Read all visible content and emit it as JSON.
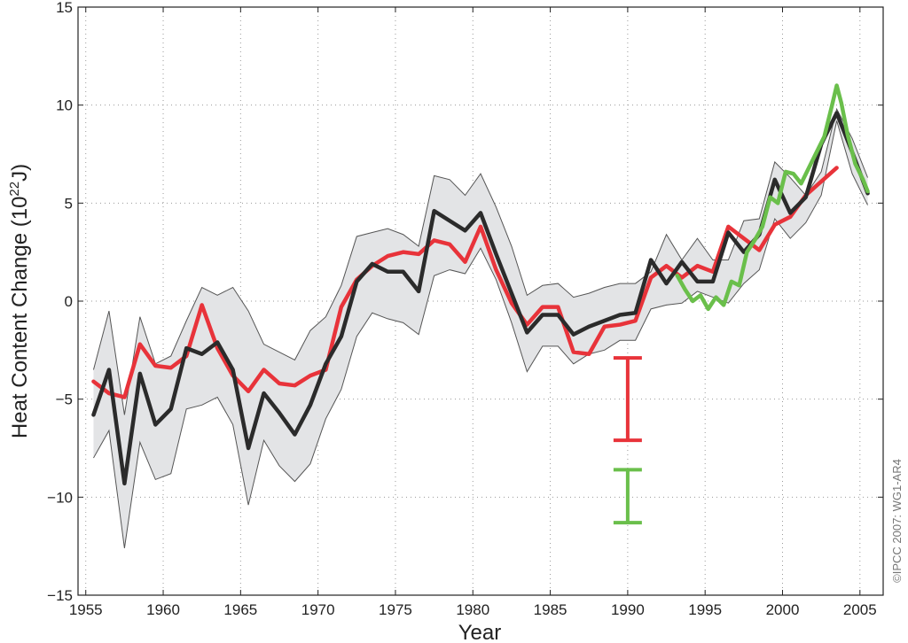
{
  "chart_data": {
    "type": "line",
    "xlabel": "Year",
    "ylabel_main": "Heat Content Change (10",
    "ylabel_exp": "22",
    "ylabel_unit": "J)",
    "credit": "©IPCC  2007: WG1-AR4",
    "xlim": [
      1954.5,
      2006.5
    ],
    "ylim": [
      -15,
      15
    ],
    "xticks": [
      1955,
      1960,
      1965,
      1970,
      1975,
      1980,
      1985,
      1990,
      1995,
      2000,
      2005
    ],
    "yticks": [
      -15,
      -10,
      -5,
      0,
      5,
      10,
      15
    ],
    "grid": true,
    "colors": {
      "black_series": "#2b2b2b",
      "red_series": "#e8333a",
      "green_series": "#6abf4b",
      "band_fill": "#e3e4e6",
      "band_edge": "#555555"
    },
    "band": {
      "x": [
        1955.5,
        1956.5,
        1957.5,
        1958.5,
        1959.5,
        1960.5,
        1961.5,
        1962.5,
        1963.5,
        1964.5,
        1965.5,
        1966.5,
        1967.5,
        1968.5,
        1969.5,
        1970.5,
        1971.5,
        1972.5,
        1973.5,
        1974.5,
        1975.5,
        1976.5,
        1977.5,
        1978.5,
        1979.5,
        1980.5,
        1981.5,
        1982.5,
        1983.5,
        1984.5,
        1985.5,
        1986.5,
        1987.5,
        1988.5,
        1989.5,
        1990.5,
        1991.5,
        1992.5,
        1993.5,
        1994.5,
        1995.5,
        1996.5,
        1997.5,
        1998.5,
        1999.5,
        2000.5,
        2001.5,
        2002.5,
        2003.5,
        2004.5,
        2005.5
      ],
      "upper": [
        -3.5,
        -0.5,
        -5.8,
        -0.8,
        -3.2,
        -2.8,
        -1.0,
        0.7,
        0.3,
        0.7,
        -0.5,
        -2.2,
        -2.6,
        -3.0,
        -1.5,
        -0.8,
        0.8,
        3.3,
        3.5,
        3.7,
        3.4,
        2.8,
        6.4,
        6.2,
        5.4,
        6.5,
        4.8,
        2.8,
        0.3,
        0.8,
        0.9,
        0.2,
        0.4,
        0.7,
        0.9,
        0.9,
        1.5,
        3.4,
        2.1,
        3.2,
        2.1,
        2.1,
        4.1,
        4.2,
        7.1,
        6.3,
        5.4,
        6.6,
        9.8,
        8.3,
        6.3
      ],
      "lower": [
        -8.0,
        -6.6,
        -12.6,
        -7.2,
        -9.1,
        -8.8,
        -5.5,
        -5.3,
        -4.9,
        -6.3,
        -10.4,
        -7.1,
        -8.4,
        -9.2,
        -8.3,
        -6.0,
        -4.5,
        -1.8,
        -0.6,
        -0.9,
        -1.1,
        -1.7,
        1.3,
        1.6,
        1.4,
        2.7,
        1.1,
        -1.1,
        -3.6,
        -2.3,
        -2.3,
        -3.2,
        -2.7,
        -2.5,
        -2.0,
        -2.0,
        -0.4,
        -0.2,
        -0.1,
        0.5,
        0.2,
        -0.1,
        0.9,
        1.6,
        4.2,
        3.2,
        4.0,
        5.4,
        9.2,
        6.5,
        4.9
      ]
    },
    "series": [
      {
        "key": "black",
        "x": [
          1955.5,
          1956.5,
          1957.5,
          1958.5,
          1959.5,
          1960.5,
          1961.5,
          1962.5,
          1963.5,
          1964.5,
          1965.5,
          1966.5,
          1967.5,
          1968.5,
          1969.5,
          1970.5,
          1971.5,
          1972.5,
          1973.5,
          1974.5,
          1975.5,
          1976.5,
          1977.5,
          1978.5,
          1979.5,
          1980.5,
          1981.5,
          1982.5,
          1983.5,
          1984.5,
          1985.5,
          1986.5,
          1987.5,
          1988.5,
          1989.5,
          1990.5,
          1991.5,
          1992.5,
          1993.5,
          1994.5,
          1995.5,
          1996.5,
          1997.5,
          1998.5,
          1999.5,
          2000.5,
          2001.5,
          2002.5,
          2003.5,
          2004.5,
          2005.5
        ],
        "y": [
          -5.8,
          -3.5,
          -9.3,
          -3.7,
          -6.3,
          -5.5,
          -2.4,
          -2.7,
          -2.1,
          -3.5,
          -7.5,
          -4.7,
          -5.7,
          -6.8,
          -5.3,
          -3.2,
          -1.8,
          1.0,
          1.9,
          1.5,
          1.5,
          0.5,
          4.6,
          4.1,
          3.6,
          4.5,
          2.4,
          0.4,
          -1.6,
          -0.7,
          -0.7,
          -1.7,
          -1.3,
          -1.0,
          -0.7,
          -0.6,
          2.1,
          0.9,
          2.0,
          1.0,
          1.0,
          3.5,
          2.5,
          3.4,
          6.2,
          4.5,
          5.3,
          8.0,
          9.6,
          7.6,
          5.5
        ]
      },
      {
        "key": "red",
        "x": [
          1955.5,
          1956.5,
          1957.5,
          1958.5,
          1959.5,
          1960.5,
          1961.5,
          1962.5,
          1963.5,
          1964.5,
          1965.5,
          1966.5,
          1967.5,
          1968.5,
          1969.5,
          1970.5,
          1971.5,
          1972.5,
          1973.5,
          1974.5,
          1975.5,
          1976.5,
          1977.5,
          1978.5,
          1979.5,
          1980.5,
          1981.5,
          1982.5,
          1983.5,
          1984.5,
          1985.5,
          1986.5,
          1987.5,
          1988.5,
          1989.5,
          1990.5,
          1991.5,
          1992.5,
          1993.5,
          1994.5,
          1995.5,
          1996.5,
          1997.5,
          1998.5,
          1999.5,
          2000.5,
          2001.5,
          2002.5,
          2003.5
        ],
        "y": [
          -4.1,
          -4.7,
          -4.9,
          -2.2,
          -3.3,
          -3.4,
          -2.8,
          -0.2,
          -2.4,
          -3.8,
          -4.6,
          -3.5,
          -4.2,
          -4.3,
          -3.8,
          -3.5,
          -0.3,
          1.1,
          1.8,
          2.3,
          2.5,
          2.4,
          3.1,
          2.9,
          2.0,
          3.8,
          1.6,
          -0.1,
          -1.2,
          -0.3,
          -0.3,
          -2.6,
          -2.7,
          -1.3,
          -1.2,
          -1.0,
          1.2,
          1.8,
          1.2,
          1.8,
          1.5,
          3.8,
          3.2,
          2.6,
          3.9,
          4.3,
          5.4,
          6.1,
          6.8
        ]
      },
      {
        "key": "green",
        "x": [
          1993.2,
          1993.7,
          1994.2,
          1994.7,
          1995.2,
          1995.7,
          1996.2,
          1996.7,
          1997.2,
          1997.7,
          1998.2,
          1998.7,
          1999.2,
          1999.7,
          2000.2,
          2000.7,
          2001.2,
          2001.7,
          2002.2,
          2002.7,
          2003.2,
          2003.5,
          2003.8,
          2004.2,
          2004.7,
          2005.2,
          2005.5
        ],
        "y": [
          1.3,
          0.6,
          0.0,
          0.3,
          -0.4,
          0.2,
          -0.2,
          1.0,
          0.8,
          2.5,
          3.1,
          3.8,
          5.3,
          5.0,
          6.6,
          6.5,
          6.0,
          6.8,
          7.6,
          8.4,
          10.0,
          11.0,
          10.1,
          8.5,
          7.0,
          6.2,
          5.6
        ]
      }
    ],
    "error_bars": [
      {
        "key": "red",
        "x": 1990.0,
        "ylow": -7.1,
        "yhigh": -2.9
      },
      {
        "key": "green",
        "x": 1990.0,
        "ylow": -11.3,
        "yhigh": -8.6
      }
    ]
  }
}
